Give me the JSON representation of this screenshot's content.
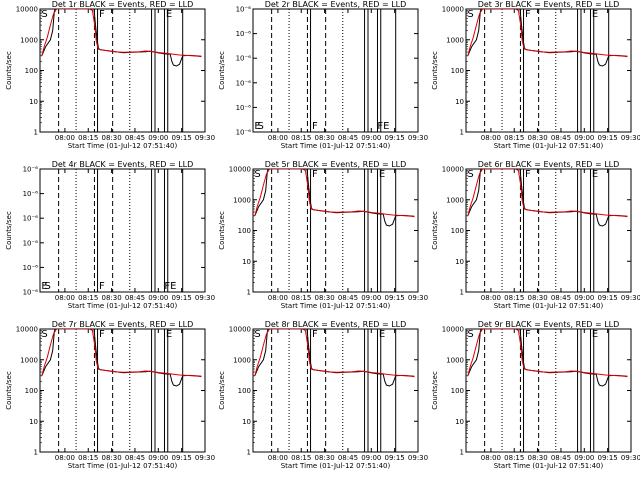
{
  "figure": {
    "panels": [
      {
        "title": "Det 1r BLACK = Events, RED = LLD",
        "xlabel": "Start Time (01-Jul-12 07:51:40)",
        "ylabel": "Counts/sec",
        "scale": "counts",
        "marks": [
          "S",
          "",
          "F",
          "E"
        ]
      },
      {
        "title": "Det 2r BLACK = Events, RED = LLD",
        "xlabel": "Start Time (01-Jul-12 07:51:40)",
        "ylabel": "Counts/sec",
        "scale": "empty",
        "marks": [
          "E",
          "S",
          "F",
          "FE"
        ]
      },
      {
        "title": "Det 3r BLACK = Events, RED = LLD",
        "xlabel": "Start Time (01-Jul-12 07:51:40)",
        "ylabel": "Counts/sec",
        "scale": "counts",
        "marks": [
          "S",
          "",
          "F",
          "E"
        ]
      },
      {
        "title": "Det 4r BLACK = Events, RED = LLD",
        "xlabel": "Start Time (01-Jul-12 07:51:40)",
        "ylabel": "Counts/sec",
        "scale": "empty",
        "marks": [
          "E",
          "S",
          "F",
          "FE"
        ]
      },
      {
        "title": "Det 5r BLACK = Events, RED = LLD",
        "xlabel": "Start Time (01-Jul-12 07:51:40)",
        "ylabel": "Counts/sec",
        "scale": "counts",
        "marks": [
          "S",
          "",
          "F",
          "E"
        ]
      },
      {
        "title": "Det 6r BLACK = Events, RED = LLD",
        "xlabel": "Start Time (01-Jul-12 07:51:40)",
        "ylabel": "Counts/sec",
        "scale": "counts",
        "marks": [
          "S",
          "",
          "F",
          "E"
        ]
      },
      {
        "title": "Det 7r BLACK = Events, RED = LLD",
        "xlabel": "Start Time (01-Jul-12 07:51:40)",
        "ylabel": "Counts/sec",
        "scale": "counts",
        "marks": [
          "S",
          "",
          "F",
          "E"
        ]
      },
      {
        "title": "Det 8r BLACK = Events, RED = LLD",
        "xlabel": "Start Time (01-Jul-12 07:51:40)",
        "ylabel": "Counts/sec",
        "scale": "counts",
        "marks": [
          "S",
          "",
          "F",
          "E"
        ]
      },
      {
        "title": "Det 9r BLACK = Events, RED = LLD",
        "xlabel": "Start Time (01-Jul-12 07:51:40)",
        "ylabel": "Counts/sec",
        "scale": "counts",
        "marks": [
          "S",
          "",
          "F",
          "E"
        ]
      }
    ]
  },
  "chart_data": {
    "type": "line",
    "x_unit": "minutes since 07:51:40",
    "xlim": [
      -7.67,
      98.33
    ],
    "x_tick_labels": [
      "08:00",
      "08:15",
      "08:30",
      "08:45",
      "09:00",
      "09:15",
      "09:30"
    ],
    "x_tick_values": [
      8.33,
      23.33,
      38.33,
      53.33,
      68.33,
      83.33,
      98.33
    ],
    "y_scale": "log",
    "counts_ylim": [
      1,
      10000
    ],
    "counts_ticks": [
      1,
      10,
      100,
      1000,
      10000
    ],
    "counts_tick_labels": [
      "1",
      "10",
      "100",
      "1000",
      "10000"
    ],
    "empty_ylim": [
      1e-06,
      1e-06
    ],
    "empty_tick_labels": [
      "10⁻⁶",
      "10⁻⁶",
      "10⁻⁶",
      "10⁻⁶",
      "10⁻⁶",
      "10⁻⁶"
    ],
    "vlines": {
      "dashed": [
        4.3,
        27.3,
        39.0
      ],
      "dotted": [
        15.5,
        50.0
      ],
      "solid": [
        29.3,
        64.0,
        66.2,
        72.3,
        74.4,
        84.0
      ]
    },
    "series_black": {
      "x": [
        -6.5,
        -4,
        -1,
        0.5,
        1.5,
        2,
        3,
        5,
        8,
        12,
        18,
        24,
        27,
        28,
        29,
        30,
        31,
        34,
        38,
        42,
        46,
        52,
        56,
        60,
        63,
        66,
        68,
        72,
        76,
        77,
        78,
        80,
        82,
        84,
        88,
        92,
        96
      ],
      "y": [
        300,
        600,
        1000,
        2000,
        8000,
        10000,
        10000,
        10000,
        10000,
        10000,
        10000,
        10000,
        10000,
        3000,
        1000,
        500,
        480,
        450,
        420,
        400,
        380,
        390,
        400,
        410,
        420,
        400,
        380,
        350,
        340,
        200,
        150,
        140,
        160,
        300,
        310,
        300,
        290
      ]
    },
    "series_red": {
      "x": [
        -6.5,
        -5,
        -3,
        -1,
        1,
        3,
        5,
        8,
        12,
        18,
        24,
        26,
        27.5,
        28.5,
        29.5,
        31,
        34,
        38,
        42,
        46,
        52,
        56,
        60,
        63,
        66,
        70,
        74,
        78,
        82,
        86,
        90,
        94,
        96
      ],
      "y": [
        300,
        600,
        1200,
        3000,
        7000,
        10000,
        10000,
        10000,
        10000,
        10000,
        10000,
        9000,
        3000,
        900,
        550,
        480,
        450,
        430,
        400,
        390,
        400,
        410,
        430,
        420,
        400,
        380,
        360,
        340,
        320,
        310,
        300,
        290,
        280
      ]
    }
  }
}
